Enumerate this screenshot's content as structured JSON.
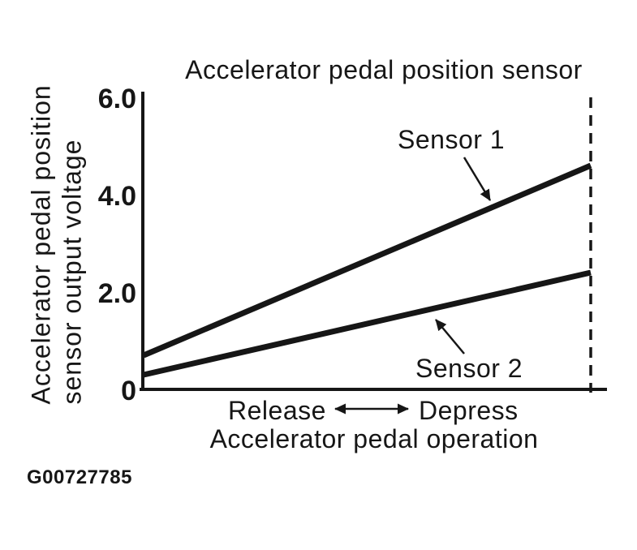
{
  "figure_code": "G00727785",
  "chart_data": {
    "type": "line",
    "title": "Accelerator pedal position sensor",
    "ylabel": "Accelerator pedal position sensor output voltage",
    "ylabel_lines": [
      "Accelerator pedal position",
      "sensor output voltage"
    ],
    "xlabel": "Accelerator pedal operation",
    "x_direction": {
      "left_label": "Release",
      "right_label": "Depress"
    },
    "ylim": [
      0,
      6.0
    ],
    "yticks": [
      {
        "label": "6.0",
        "value": 6.0
      },
      {
        "label": "4.0",
        "value": 4.0
      },
      {
        "label": "2.0",
        "value": 2.0
      },
      {
        "label": "0",
        "value": 0
      }
    ],
    "series": [
      {
        "name": "Sensor 1",
        "voltage_at_release": 0.7,
        "voltage_at_full_depress": 4.6
      },
      {
        "name": "Sensor 2",
        "voltage_at_release": 0.3,
        "voltage_at_full_depress": 2.4
      }
    ],
    "right_boundary": {
      "style": "dashed"
    },
    "grid": false,
    "line_color": "#161616"
  }
}
